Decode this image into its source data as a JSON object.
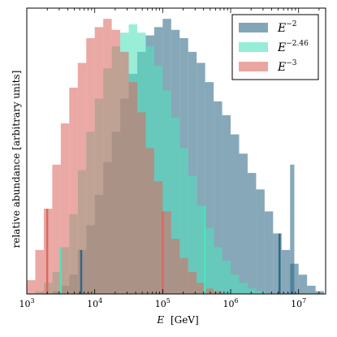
{
  "chart_data": {
    "type": "bar",
    "xlabel_symbol": "E",
    "xlabel_unit": "[GeV]",
    "ylabel": "relative abundance [arbitrary units]",
    "xscale": "log",
    "xlim": [
      1000,
      25000000
    ],
    "ylim": [
      0,
      1.0
    ],
    "xticks": [
      {
        "base": "10",
        "exp": "3",
        "value": 1000
      },
      {
        "base": "10",
        "exp": "4",
        "value": 10000
      },
      {
        "base": "10",
        "exp": "5",
        "value": 100000
      },
      {
        "base": "10",
        "exp": "6",
        "value": 1000000
      },
      {
        "base": "10",
        "exp": "7",
        "value": 10000000
      }
    ],
    "bin_edges_log10": [
      3.0,
      3.125,
      3.25,
      3.375,
      3.5,
      3.625,
      3.75,
      3.875,
      4.0,
      4.125,
      4.25,
      4.375,
      4.5,
      4.625,
      4.75,
      4.875,
      5.0,
      5.125,
      5.25,
      5.375,
      5.5,
      5.625,
      5.75,
      5.875,
      6.0,
      6.125,
      6.25,
      6.375,
      6.5,
      6.625,
      6.75,
      6.875,
      7.0,
      7.125,
      7.25,
      7.375
    ],
    "legend_position": "top-right",
    "series": [
      {
        "name": "E",
        "exp": "−2",
        "color": "#2e6987",
        "counts": [
          0,
          0,
          0,
          0.01,
          0.03,
          0.07,
          0.16,
          0.25,
          0.36,
          0.48,
          0.59,
          0.71,
          0.8,
          0.88,
          0.94,
          0.97,
          1.0,
          0.96,
          0.93,
          0.88,
          0.84,
          0.77,
          0.7,
          0.65,
          0.58,
          0.51,
          0.44,
          0.38,
          0.3,
          0.22,
          0.16,
          0.11,
          0.07,
          0.03,
          0.01
        ],
        "outlier": {
          "log10": 6.875,
          "width": 0.0625,
          "height": 0.47
        },
        "marker_log10": [
          3.8,
          6.72
        ]
      },
      {
        "name": "E",
        "exp": "−2.46",
        "color": "#4fe1bc",
        "counts": [
          0,
          0.01,
          0.04,
          0.08,
          0.17,
          0.29,
          0.45,
          0.59,
          0.71,
          0.82,
          0.9,
          0.95,
          0.98,
          0.95,
          0.9,
          0.83,
          0.74,
          0.64,
          0.53,
          0.43,
          0.32,
          0.24,
          0.17,
          0.12,
          0.07,
          0.04,
          0.02,
          0.01,
          0,
          0,
          0,
          0,
          0,
          0,
          0
        ],
        "marker_log10": [
          3.5,
          5.62
        ]
      },
      {
        "name": "E",
        "exp": "−3",
        "color": "#da6a62",
        "counts": [
          0.05,
          0.16,
          0.31,
          0.47,
          0.62,
          0.75,
          0.84,
          0.93,
          0.97,
          1.0,
          0.96,
          0.88,
          0.77,
          0.66,
          0.53,
          0.41,
          0.3,
          0.2,
          0.13,
          0.08,
          0.04,
          0.02,
          0.01,
          0,
          0,
          0,
          0,
          0,
          0,
          0,
          0,
          0,
          0,
          0,
          0
        ],
        "marker_log10": [
          3.3,
          5.0
        ]
      }
    ]
  }
}
